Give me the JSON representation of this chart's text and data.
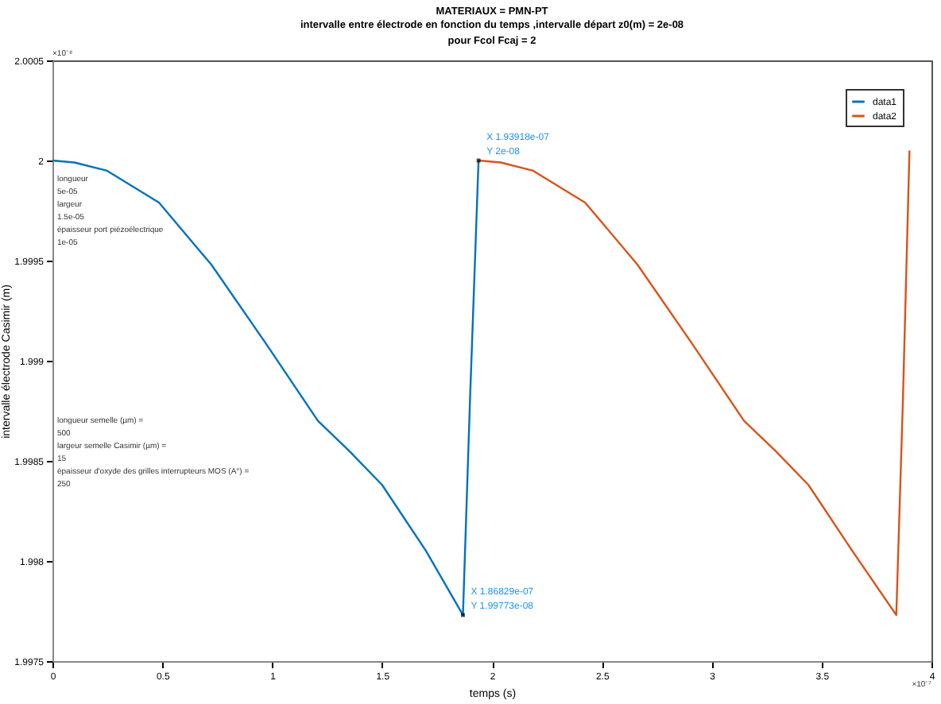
{
  "chart_data": {
    "type": "line",
    "title": "MATERIAUX = PMN-PT",
    "subtitle": "intervalle entre électrode en fonction du temps ,intervalle départ z0(m) = 2e-08\npour Fcol Fcaj = 2",
    "xlabel": "temps (s)",
    "ylabel": "intervalle électrode Casimir (m)",
    "xlim": [
      0,
      4
    ],
    "xticks": [
      0,
      0.5,
      1,
      1.5,
      2,
      2.5,
      3,
      3.5,
      4
    ],
    "ylim": [
      1.9975,
      2.0005
    ],
    "yticks": [
      1.9975,
      1.998,
      1.9985,
      1.999,
      1.9995,
      2,
      2.0005
    ],
    "legend": "top right",
    "grid": false,
    "marker": "none",
    "line_style": "solid",
    "series": [
      {
        "name": "data1",
        "color": "#0072bd",
        "x": [
          0,
          0.1,
          0.246,
          0.485,
          0.723,
          0.969,
          1.208,
          1.35,
          1.5,
          1.7,
          1.868,
          1.9,
          1.939
        ],
        "values": [
          2,
          1.99999,
          1.99995,
          1.99979,
          1.99948,
          1.99909,
          1.9987,
          1.99855,
          1.99838,
          1.99805,
          1.99773,
          1.9988,
          2
        ]
      },
      {
        "name": "data2",
        "color": "#d95319",
        "x": [
          1.939,
          2.04,
          2.185,
          2.424,
          2.662,
          2.908,
          3.147,
          3.29,
          3.44,
          3.64,
          3.84,
          3.87,
          3.9
        ],
        "values": [
          2,
          1.99999,
          1.99995,
          1.99979,
          1.99948,
          1.99909,
          1.9987,
          1.99855,
          1.99838,
          1.99805,
          1.99773,
          1.9988,
          2.00005
        ]
      }
    ],
    "annotations": [
      "longueur\n5e-05\nlargeur\n1.5e-05\népaisseur port piézoélectrique\n1e-05",
      "longueur semelle (µm) =\n500\nlargeur semelle Casimir (µm) =\n15\népaisseur d'oxyde des grilles interrupteurs MOS (A°) =\n250",
      "×10⁻⁸",
      "×10⁻⁷",
      {
        "text": "X 1.93918e-07\nY 2e-08",
        "x": 1.939,
        "y": 2
      },
      {
        "text": "X 1.86829e-07\nY 1.99773e-08",
        "x": 1.868,
        "y": 1.99773
      }
    ]
  }
}
